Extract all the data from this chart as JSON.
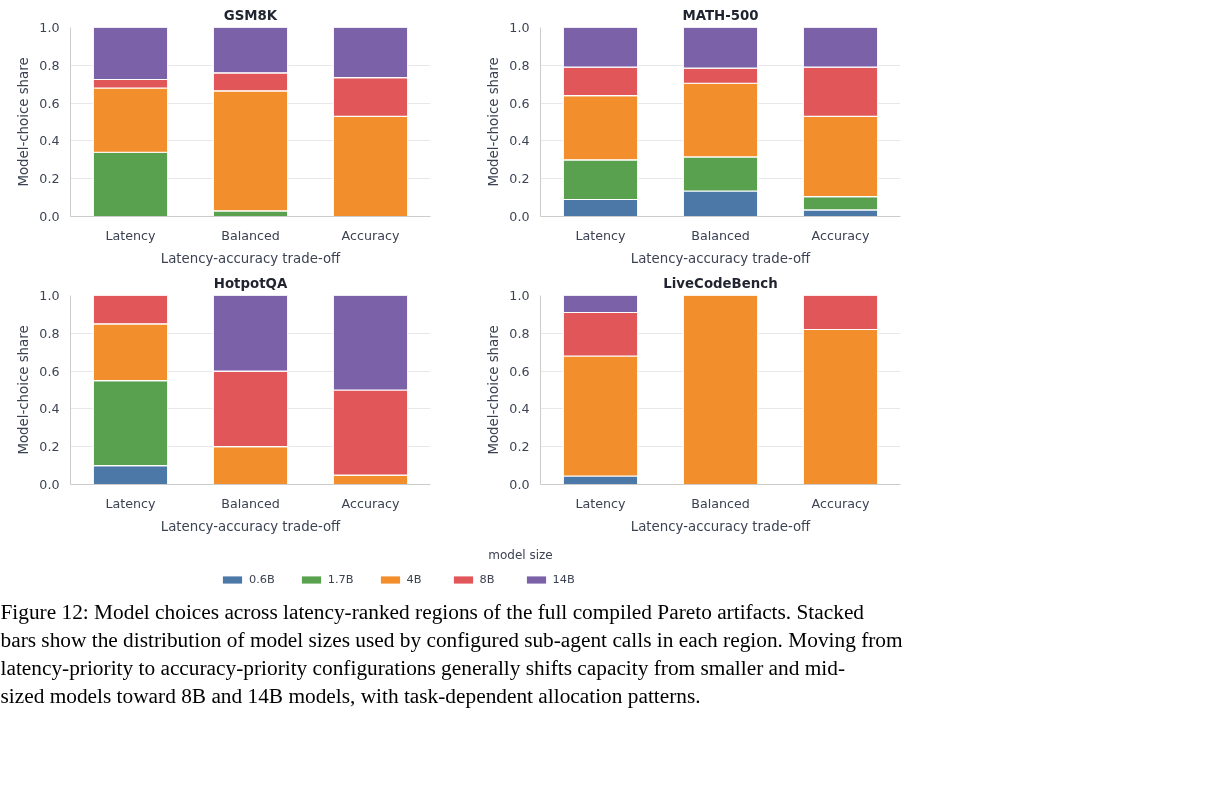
{
  "chart_data": [
    {
      "type": "bar",
      "title": "GSM8K",
      "xlabel": "Latency-accuracy trade-off",
      "ylabel": "Model-choice share",
      "categories": [
        "Latency",
        "Balanced",
        "Accuracy"
      ],
      "stacked": true,
      "ylim": [
        0,
        1
      ],
      "yticks": [
        {
          "value": 0,
          "label": "0.0"
        },
        {
          "value": 0.2,
          "label": "0.2"
        },
        {
          "value": 0.4,
          "label": "0.4"
        },
        {
          "value": 0.6,
          "label": "0.6"
        },
        {
          "value": 0.8,
          "label": "0.8"
        },
        {
          "value": 1,
          "label": "1.0"
        }
      ],
      "grid": "y",
      "series": [
        {
          "color": "#4c78a8",
          "values": [
            0,
            0,
            0
          ]
        },
        {
          "color": "#59a14f",
          "values": [
            0.34,
            0.03,
            0
          ]
        },
        {
          "color": "#f28e2b",
          "values": [
            0.34,
            0.635,
            0.53
          ]
        },
        {
          "color": "#e15759",
          "values": [
            0.045,
            0.095,
            0.205
          ]
        },
        {
          "color": "#7b61a8",
          "values": [
            0.275,
            0.24,
            0.265
          ]
        }
      ]
    },
    {
      "type": "bar",
      "title": "MATH-500",
      "xlabel": "Latency-accuracy trade-off",
      "ylabel": "Model-choice share",
      "categories": [
        "Latency",
        "Balanced",
        "Accuracy"
      ],
      "stacked": true,
      "ylim": [
        0,
        1
      ],
      "yticks": [
        {
          "value": 0,
          "label": "0.0"
        },
        {
          "value": 0.2,
          "label": "0.2"
        },
        {
          "value": 0.4,
          "label": "0.4"
        },
        {
          "value": 0.6,
          "label": "0.6"
        },
        {
          "value": 0.8,
          "label": "0.8"
        },
        {
          "value": 1,
          "label": "1.0"
        }
      ],
      "grid": "y",
      "series": [
        {
          "color": "#4c78a8",
          "values": [
            0.09,
            0.135,
            0.035
          ]
        },
        {
          "color": "#59a14f",
          "values": [
            0.21,
            0.18,
            0.07
          ]
        },
        {
          "color": "#f28e2b",
          "values": [
            0.34,
            0.39,
            0.425
          ]
        },
        {
          "color": "#e15759",
          "values": [
            0.15,
            0.08,
            0.26
          ]
        },
        {
          "color": "#7b61a8",
          "values": [
            0.21,
            0.215,
            0.21
          ]
        }
      ]
    },
    {
      "type": "bar",
      "title": "HotpotQA",
      "xlabel": "Latency-accuracy trade-off",
      "ylabel": "Model-choice share",
      "categories": [
        "Latency",
        "Balanced",
        "Accuracy"
      ],
      "stacked": true,
      "ylim": [
        0,
        1
      ],
      "yticks": [
        {
          "value": 0,
          "label": "0.0"
        },
        {
          "value": 0.2,
          "label": "0.2"
        },
        {
          "value": 0.4,
          "label": "0.4"
        },
        {
          "value": 0.6,
          "label": "0.6"
        },
        {
          "value": 0.8,
          "label": "0.8"
        },
        {
          "value": 1,
          "label": "1.0"
        }
      ],
      "grid": "y",
      "series": [
        {
          "color": "#4c78a8",
          "values": [
            0.1,
            0,
            0
          ]
        },
        {
          "color": "#59a14f",
          "values": [
            0.45,
            0,
            0
          ]
        },
        {
          "color": "#f28e2b",
          "values": [
            0.3,
            0.2,
            0.05
          ]
        },
        {
          "color": "#e15759",
          "values": [
            0.15,
            0.4,
            0.45
          ]
        },
        {
          "color": "#7b61a8",
          "values": [
            0,
            0.4,
            0.5
          ]
        }
      ]
    },
    {
      "type": "bar",
      "title": "LiveCodeBench",
      "xlabel": "Latency-accuracy trade-off",
      "ylabel": "Model-choice share",
      "categories": [
        "Latency",
        "Balanced",
        "Accuracy"
      ],
      "stacked": true,
      "ylim": [
        0,
        1
      ],
      "yticks": [
        {
          "value": 0,
          "label": "0.0"
        },
        {
          "value": 0.2,
          "label": "0.2"
        },
        {
          "value": 0.4,
          "label": "0.4"
        },
        {
          "value": 0.6,
          "label": "0.6"
        },
        {
          "value": 0.8,
          "label": "0.8"
        },
        {
          "value": 1,
          "label": "1.0"
        }
      ],
      "grid": "y",
      "legend": "bottom",
      "legend_title": "model size",
      "annotations": [
        "Figure 12: Model choices across latency-ranked regions of the full compiled Pareto artifacts. Stacked bars show the distribution of model sizes used by configured sub-agent calls in each region. Moving from latency-priority to accuracy-priority configurations generally shifts capacity from smaller and mid-sized models toward 8B and 14B models, with task-dependent allocation patterns."
      ],
      "series": [
        {
          "name": "0.6B",
          "color": "#4c78a8",
          "values": [
            0.045,
            0,
            0
          ]
        },
        {
          "name": "1.7B",
          "color": "#59a14f",
          "values": [
            0,
            0,
            0
          ]
        },
        {
          "name": "4B",
          "color": "#f28e2b",
          "values": [
            0.635,
            1,
            0.82
          ]
        },
        {
          "name": "8B",
          "color": "#e15759",
          "values": [
            0.23,
            0,
            0.18
          ]
        },
        {
          "name": "14B",
          "color": "#7b61a8",
          "values": [
            0.09,
            0,
            0
          ]
        }
      ]
    }
  ]
}
